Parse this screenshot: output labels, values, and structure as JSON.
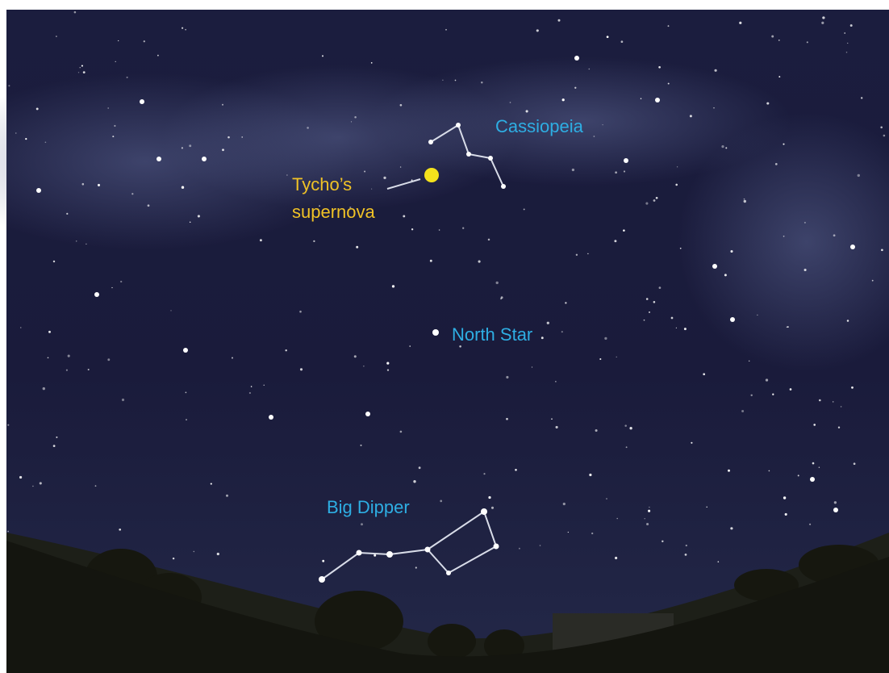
{
  "labels": {
    "cassiopeia": "Cassiopeia",
    "supernova": [
      "Tycho’s",
      "supernova"
    ],
    "north_star": "North Star",
    "big_dipper": "Big Dipper"
  }
}
